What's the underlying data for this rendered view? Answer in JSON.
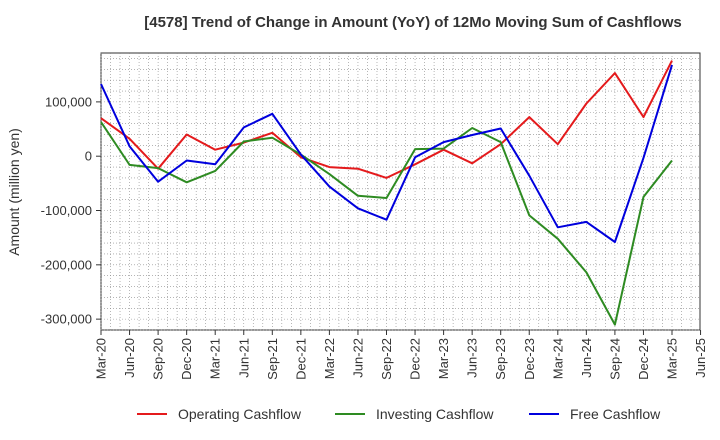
{
  "chart_data": {
    "type": "line",
    "title": "[4578]  Trend of Change in Amount (YoY) of 12Mo Moving Sum of Cashflows",
    "xlabel": "",
    "ylabel": "Amount (million yen)",
    "ylim": [
      -320000,
      190000
    ],
    "yticks": [
      100000,
      0,
      -100000,
      -200000,
      -300000
    ],
    "ytick_labels": [
      "100,000",
      "0",
      "-100,000",
      "-200,000",
      "-300,000"
    ],
    "grid": true,
    "legend_position": "bottom",
    "categories": [
      "Mar-20",
      "Jun-20",
      "Sep-20",
      "Dec-20",
      "Mar-21",
      "Jun-21",
      "Sep-21",
      "Dec-21",
      "Mar-22",
      "Jun-22",
      "Sep-22",
      "Dec-22",
      "Mar-23",
      "Jun-23",
      "Sep-23",
      "Dec-23",
      "Mar-24",
      "Jun-24",
      "Sep-24",
      "Dec-24",
      "Mar-25",
      "Jun-25"
    ],
    "series": [
      {
        "name": "Operating Cashflow",
        "color": "#e41a1c",
        "values": [
          70000,
          32000,
          -23000,
          40000,
          12000,
          25000,
          43000,
          -2000,
          -20000,
          -23000,
          -40000,
          -15000,
          12000,
          -13000,
          22000,
          72000,
          22000,
          97000,
          153000,
          72000,
          176000,
          null
        ]
      },
      {
        "name": "Investing Cashflow",
        "color": "#2e8b22",
        "values": [
          63000,
          -16000,
          -22000,
          -48000,
          -27000,
          27000,
          34000,
          3000,
          -33000,
          -73000,
          -77000,
          13000,
          14000,
          52000,
          26000,
          -109000,
          -152000,
          -214000,
          -310000,
          -75000,
          -8000,
          null
        ]
      },
      {
        "name": "Free Cashflow",
        "color": "#0000dd",
        "values": [
          133000,
          18000,
          -47000,
          -8000,
          -15000,
          53000,
          78000,
          3000,
          -56000,
          -96000,
          -117000,
          -2000,
          26000,
          39000,
          51000,
          -36000,
          -131000,
          -121000,
          -158000,
          -3000,
          168000,
          null
        ]
      }
    ]
  }
}
